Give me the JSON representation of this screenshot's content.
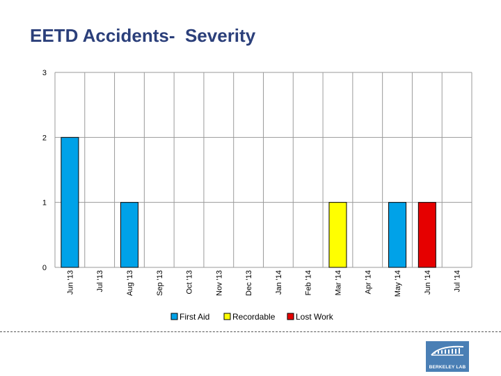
{
  "title": "EETD Accidents-  Severity",
  "chart_data": {
    "type": "bar",
    "title": "EETD Accidents-  Severity",
    "xlabel": "",
    "ylabel": "",
    "ylim": [
      0,
      3
    ],
    "yticks": [
      0,
      1,
      2,
      3
    ],
    "grid": true,
    "stacked": true,
    "legend_position": "bottom",
    "categories": [
      "Jun '13",
      "Jul '13",
      "Aug '13",
      "Sep '13",
      "Oct '13",
      "Nov '13",
      "Dec '13",
      "Jan '14",
      "Feb '14",
      "Mar '14",
      "Apr '14",
      "May '14",
      "Jun '14",
      "Jul '14"
    ],
    "series": [
      {
        "name": "First Aid",
        "color": "#00a2e8",
        "values": [
          2,
          0,
          1,
          0,
          0,
          0,
          0,
          0,
          0,
          0,
          0,
          1,
          0,
          0
        ]
      },
      {
        "name": "Recordable",
        "color": "#ffff00",
        "values": [
          0,
          0,
          0,
          0,
          0,
          0,
          0,
          0,
          0,
          1,
          0,
          0,
          0,
          0
        ]
      },
      {
        "name": "Lost Work",
        "color": "#e60000",
        "values": [
          0,
          0,
          0,
          0,
          0,
          0,
          0,
          0,
          0,
          0,
          0,
          0,
          1,
          0
        ]
      }
    ]
  },
  "logo": {
    "text": "BERKELEY LAB",
    "color": "#4a7fb5"
  }
}
